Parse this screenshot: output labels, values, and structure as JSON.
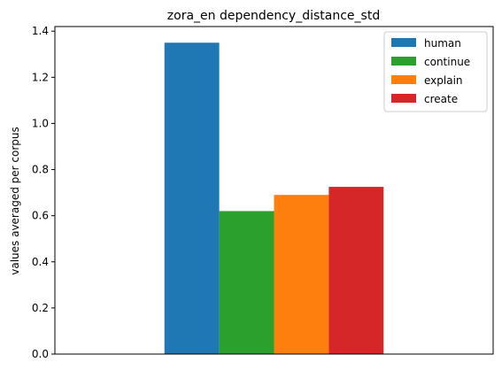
{
  "chart_data": {
    "type": "bar",
    "title": "zora_en dependency_distance_std",
    "xlabel": "",
    "ylabel": "values averaged per corpus",
    "categories": [
      ""
    ],
    "ylim": [
      0,
      1.42
    ],
    "yticks": [
      0.0,
      0.2,
      0.4,
      0.6,
      0.8,
      1.0,
      1.2,
      1.4
    ],
    "ytick_labels": [
      "0.0",
      "0.2",
      "0.4",
      "0.6",
      "0.8",
      "1.0",
      "1.2",
      "1.4"
    ],
    "grid": false,
    "legend_position": "top-right",
    "series": [
      {
        "name": "human",
        "values": [
          1.35
        ],
        "color": "#1f77b4"
      },
      {
        "name": "continue",
        "values": [
          0.62
        ],
        "color": "#2ca02c"
      },
      {
        "name": "explain",
        "values": [
          0.69
        ],
        "color": "#ff7f0e"
      },
      {
        "name": "create",
        "values": [
          0.725
        ],
        "color": "#d62728"
      }
    ]
  }
}
